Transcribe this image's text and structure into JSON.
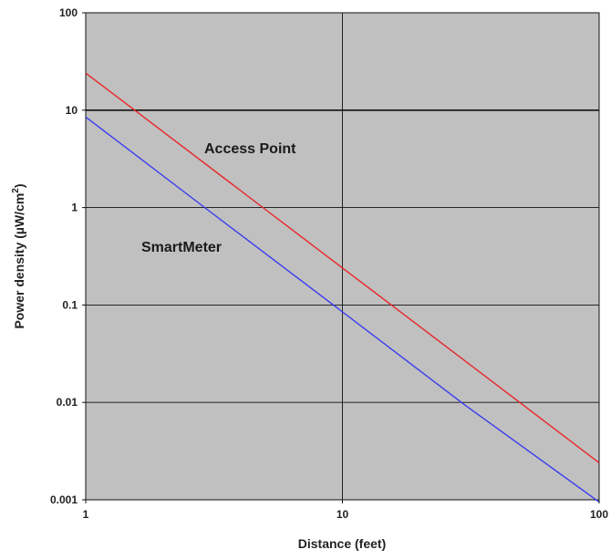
{
  "chart_data": {
    "type": "line",
    "title": "",
    "xlabel": "Distance (feet)",
    "ylabel_prefix": "Power density  (",
    "ylabel_unit": "µW/cm",
    "ylabel_exp": "2",
    "ylabel_suffix": ")",
    "xscale": "log",
    "yscale": "log",
    "xlim": [
      1,
      100
    ],
    "ylim": [
      0.001,
      100
    ],
    "x_ticks": [
      1,
      10,
      100
    ],
    "x_tick_labels": [
      "1",
      "10",
      "100"
    ],
    "y_ticks": [
      0.001,
      0.01,
      0.1,
      1,
      10,
      100
    ],
    "y_tick_labels": [
      "0.001",
      "0.01",
      "0.1",
      "1",
      "10",
      "100"
    ],
    "grid": true,
    "series": [
      {
        "name": "Access Point",
        "color": "#e8262a",
        "x": [
          1,
          1.6,
          5,
          10,
          16,
          50,
          100
        ],
        "y": [
          24,
          9.4,
          0.96,
          0.24,
          0.094,
          0.0096,
          0.0024
        ]
      },
      {
        "name": "SmartMeter",
        "color": "#3b3bf0",
        "x": [
          1,
          3,
          10,
          30,
          100
        ],
        "y": [
          8.5,
          0.94,
          0.085,
          0.0094,
          0.00095
        ]
      }
    ]
  },
  "colors": {
    "plot_background": "#c0c0c0",
    "grid": "#111111"
  }
}
